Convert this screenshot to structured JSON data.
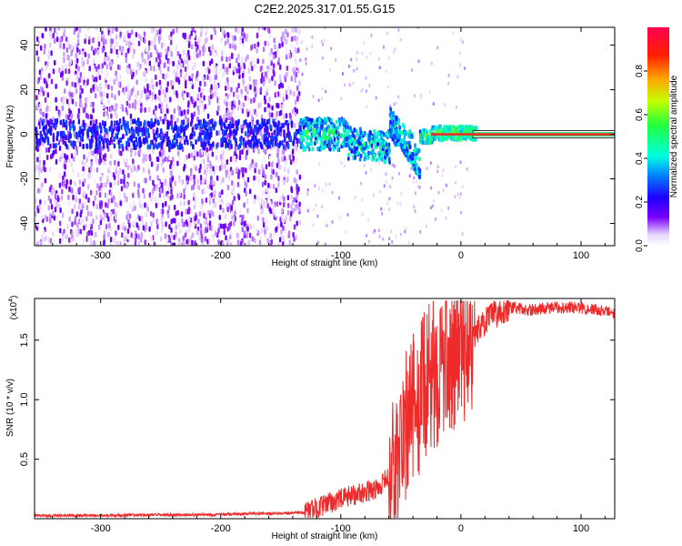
{
  "title": "C2E2.2025.317.01.55.G15",
  "chart_data": [
    {
      "type": "heatmap",
      "name": "spectrogram",
      "xlabel": "Height of straight line (km)",
      "ylabel": "Frequency (Hz)",
      "xlim": [
        -355,
        128
      ],
      "ylim": [
        -50,
        48
      ],
      "xticks": [
        -300,
        -200,
        -100,
        0,
        100
      ],
      "yticks": [
        -40,
        -20,
        0,
        20,
        40
      ],
      "colorbar": {
        "label": "Normalized spectral amplitude",
        "range": [
          0.0,
          1.0
        ],
        "ticks": [
          0.0,
          0.2,
          0.4,
          0.6,
          0.8
        ]
      },
      "features": {
        "noise_region_x": [
          -355,
          -135
        ],
        "transition_region_x": [
          -135,
          10
        ],
        "tone_region_x": [
          10,
          128
        ],
        "tone_frequency": 0
      }
    },
    {
      "type": "line",
      "name": "snr",
      "xlabel": "Height of straight line (km)",
      "ylabel": "SNR (10 * v/v)",
      "scale_label": "(x10",
      "scale_exponent": "4",
      "scale_suffix": ")",
      "xlim": [
        -355,
        128
      ],
      "ylim": [
        0,
        18500
      ],
      "xticks": [
        -300,
        -200,
        -100,
        0,
        100
      ],
      "yticks": [
        0.5,
        1.0,
        1.5
      ],
      "ytick_labels": [
        "0.5",
        "1.0",
        "1.5"
      ],
      "color": "#ee2a2a",
      "anchors": {
        "x": [
          -355,
          -200,
          -130,
          -110,
          -90,
          -70,
          -55,
          -45,
          -35,
          -25,
          -15,
          -5,
          5,
          15,
          25,
          40,
          55,
          70,
          90,
          110,
          128
        ],
        "y": [
          250,
          350,
          500,
          1300,
          2000,
          2500,
          4000,
          8000,
          10000,
          12000,
          13000,
          14000,
          14500,
          16000,
          17000,
          17800,
          17500,
          17700,
          17800,
          17600,
          17300
        ]
      }
    }
  ]
}
